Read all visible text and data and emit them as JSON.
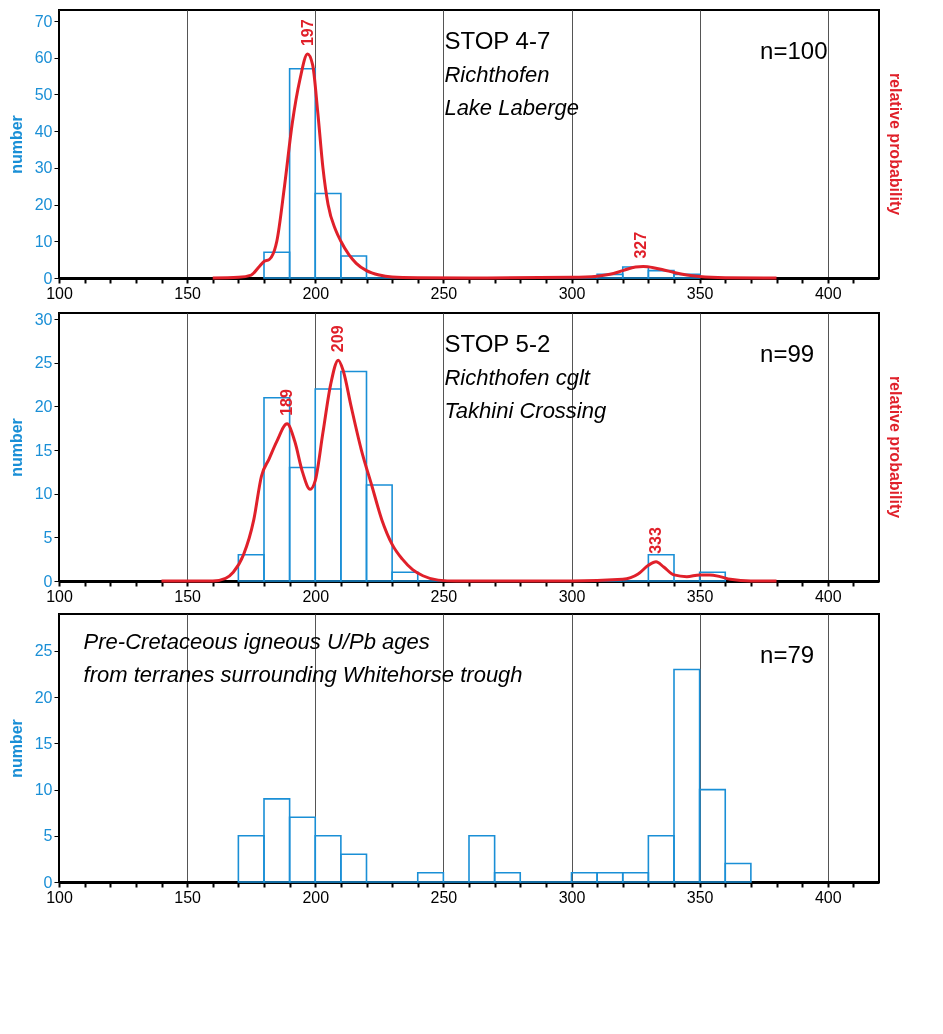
{
  "chart_data": [
    {
      "type": "histogram",
      "title": "STOP 4-7",
      "ylabel": "number",
      "y2label": "relative probability",
      "annotations": [
        "Richthofen",
        "Lake Laberge",
        "n=100",
        {
          "text": "197",
          "x": 197,
          "y": 61
        },
        {
          "text": "327",
          "x": 327,
          "y": 3.1
        }
      ],
      "color": "#1a8fd6",
      "bins": [
        180,
        190,
        200,
        210,
        220,
        230,
        240,
        250,
        260,
        270,
        280,
        290,
        300,
        310,
        320,
        330,
        340,
        350
      ],
      "values": [
        7,
        57,
        23,
        6,
        0,
        0,
        0,
        0,
        0,
        0,
        0,
        0,
        0,
        1,
        3,
        2,
        1
      ],
      "series": [
        {
          "type": "line",
          "color": "#e0202a",
          "x": [
            160,
            170,
            175,
            178,
            180,
            182,
            185,
            188,
            191,
            194,
            197,
            199,
            201,
            203,
            205,
            208,
            210,
            213,
            216,
            220,
            225,
            230,
            240,
            260,
            300,
            310,
            315,
            320,
            325,
            328,
            332,
            336,
            340,
            345,
            350,
            360,
            380
          ],
          "values": [
            0,
            0.2,
            0.8,
            3,
            4.5,
            5,
            10,
            25,
            42,
            54,
            61,
            58,
            45,
            30,
            20,
            13,
            10,
            6.5,
            4,
            2,
            0.8,
            0.3,
            0.1,
            0,
            0.2,
            0.5,
            1,
            2,
            3,
            3.1,
            2.8,
            2.2,
            1.5,
            0.8,
            0.4,
            0.1,
            0
          ]
        }
      ],
      "xlim": [
        100,
        420
      ],
      "xticks": [
        100,
        {
          "value": 110,
          "label": null
        },
        {
          "value": 120,
          "label": null
        },
        {
          "value": 130,
          "label": null
        },
        {
          "value": 140,
          "label": null
        },
        150,
        {
          "value": 160,
          "label": null
        },
        {
          "value": 170,
          "label": null
        },
        {
          "value": 180,
          "label": null
        },
        {
          "value": 190,
          "label": null
        },
        200,
        {
          "value": 210,
          "label": null
        },
        {
          "value": 220,
          "label": null
        },
        {
          "value": 230,
          "label": null
        },
        {
          "value": 240,
          "label": null
        },
        250,
        {
          "value": 260,
          "label": null
        },
        {
          "value": 270,
          "label": null
        },
        {
          "value": 280,
          "label": null
        },
        {
          "value": 290,
          "label": null
        },
        300,
        {
          "value": 310,
          "label": null
        },
        {
          "value": 320,
          "label": null
        },
        {
          "value": 330,
          "label": null
        },
        {
          "value": 340,
          "label": null
        },
        350,
        {
          "value": 360,
          "label": null
        },
        {
          "value": 370,
          "label": null
        },
        {
          "value": 380,
          "label": null
        },
        {
          "value": 390,
          "label": null
        },
        400,
        {
          "value": 410,
          "label": null
        }
      ],
      "ylim": [
        0,
        73
      ],
      "yticks": [
        0,
        10,
        20,
        30,
        40,
        50,
        60,
        70
      ],
      "grid": "x"
    },
    {
      "type": "histogram",
      "title": "STOP 5-2",
      "ylabel": "number",
      "y2label": "relative probability",
      "annotations": [
        "Richthofen cglt",
        "Takhini  Crossing",
        "n=99",
        {
          "text": "189",
          "x": 189,
          "y": 18
        },
        {
          "text": "209",
          "x": 209,
          "y": 25.3
        },
        {
          "text": "333",
          "x": 333,
          "y": 2.2
        }
      ],
      "color": "#1a8fd6",
      "bins": [
        170,
        180,
        190,
        200,
        210,
        220,
        230,
        240,
        250,
        260,
        270,
        280,
        290,
        300,
        310,
        320,
        330,
        340,
        350,
        360
      ],
      "values": [
        3,
        21,
        13,
        22,
        24,
        11,
        1,
        0,
        0,
        0,
        0,
        0,
        0,
        0,
        0,
        0,
        3,
        0,
        1
      ],
      "series": [
        {
          "type": "line",
          "color": "#e0202a",
          "x": [
            140,
            160,
            165,
            168,
            172,
            176,
            179,
            182,
            185,
            189,
            192,
            195,
            198,
            200,
            203,
            206,
            209,
            211,
            214,
            218,
            222,
            226,
            230,
            234,
            238,
            242,
            248,
            255,
            300,
            320,
            326,
            330,
            333,
            336,
            340,
            345,
            350,
            354,
            358,
            362,
            370,
            380
          ],
          "values": [
            0,
            0,
            0.3,
            1,
            3,
            7,
            12,
            14,
            16,
            18,
            16,
            12.5,
            10.5,
            11.5,
            17,
            22.5,
            25.3,
            24,
            20,
            15,
            11,
            7,
            4.2,
            2.5,
            1.3,
            0.6,
            0.1,
            0,
            0,
            0.2,
            0.8,
            1.8,
            2.2,
            1.6,
            0.7,
            0.5,
            0.7,
            0.7,
            0.5,
            0.2,
            0,
            0
          ]
        }
      ],
      "xlim": [
        100,
        420
      ],
      "xticks": [
        100,
        {
          "value": 110,
          "label": null
        },
        {
          "value": 120,
          "label": null
        },
        {
          "value": 130,
          "label": null
        },
        {
          "value": 140,
          "label": null
        },
        150,
        {
          "value": 160,
          "label": null
        },
        {
          "value": 170,
          "label": null
        },
        {
          "value": 180,
          "label": null
        },
        {
          "value": 190,
          "label": null
        },
        200,
        {
          "value": 210,
          "label": null
        },
        {
          "value": 220,
          "label": null
        },
        {
          "value": 230,
          "label": null
        },
        {
          "value": 240,
          "label": null
        },
        250,
        {
          "value": 260,
          "label": null
        },
        {
          "value": 270,
          "label": null
        },
        {
          "value": 280,
          "label": null
        },
        {
          "value": 290,
          "label": null
        },
        300,
        {
          "value": 310,
          "label": null
        },
        {
          "value": 320,
          "label": null
        },
        {
          "value": 330,
          "label": null
        },
        {
          "value": 340,
          "label": null
        },
        350,
        {
          "value": 360,
          "label": null
        },
        {
          "value": 370,
          "label": null
        },
        {
          "value": 380,
          "label": null
        },
        {
          "value": 390,
          "label": null
        },
        400,
        {
          "value": 410,
          "label": null
        }
      ],
      "ylim": [
        0,
        30.7
      ],
      "yticks": [
        0,
        5,
        10,
        15,
        20,
        25,
        30
      ],
      "grid": "x"
    },
    {
      "type": "histogram",
      "ylabel": "number",
      "annotations": [
        "Pre-Cretaceous igneous U/Pb ages",
        "from terranes surrounding Whitehorse trough",
        "n=79"
      ],
      "color": "#1a8fd6",
      "bins": [
        170,
        180,
        190,
        200,
        210,
        220,
        230,
        240,
        250,
        260,
        270,
        280,
        290,
        300,
        310,
        320,
        330,
        340,
        350,
        360,
        370
      ],
      "values": [
        5,
        9,
        7,
        5,
        3,
        0,
        0,
        1,
        0,
        5,
        1,
        0,
        0,
        1,
        1,
        1,
        5,
        23,
        10,
        2
      ],
      "xlim": [
        100,
        420
      ],
      "xticks": [
        100,
        {
          "value": 110,
          "label": null
        },
        {
          "value": 120,
          "label": null
        },
        {
          "value": 130,
          "label": null
        },
        {
          "value": 140,
          "label": null
        },
        150,
        {
          "value": 160,
          "label": null
        },
        {
          "value": 170,
          "label": null
        },
        {
          "value": 180,
          "label": null
        },
        {
          "value": 190,
          "label": null
        },
        200,
        {
          "value": 210,
          "label": null
        },
        {
          "value": 220,
          "label": null
        },
        {
          "value": 230,
          "label": null
        },
        {
          "value": 240,
          "label": null
        },
        250,
        {
          "value": 260,
          "label": null
        },
        {
          "value": 270,
          "label": null
        },
        {
          "value": 280,
          "label": null
        },
        {
          "value": 290,
          "label": null
        },
        300,
        {
          "value": 310,
          "label": null
        },
        {
          "value": 320,
          "label": null
        },
        {
          "value": 330,
          "label": null
        },
        {
          "value": 340,
          "label": null
        },
        350,
        {
          "value": 360,
          "label": null
        },
        {
          "value": 370,
          "label": null
        },
        {
          "value": 380,
          "label": null
        },
        {
          "value": 390,
          "label": null
        },
        400,
        {
          "value": 410,
          "label": null
        }
      ],
      "ylim": [
        0,
        29
      ],
      "yticks": [
        0,
        5,
        10,
        15,
        20,
        25
      ],
      "grid": "x"
    }
  ]
}
